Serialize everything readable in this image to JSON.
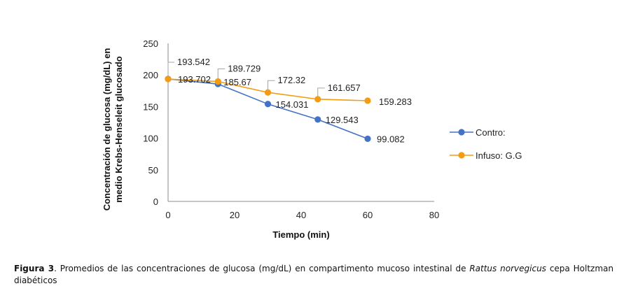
{
  "chart_data": {
    "type": "line",
    "xlabel": "Tiempo (min)",
    "ylabel_lines": [
      "Concentración de glucosa (mg/dL) en",
      "medio Krebs-Henseleit glucosado"
    ],
    "xlim": [
      0,
      80
    ],
    "ylim": [
      0,
      250
    ],
    "x_ticks": [
      0,
      20,
      40,
      60,
      80
    ],
    "y_ticks": [
      0,
      50,
      100,
      150,
      200,
      250
    ],
    "grid": false,
    "legend_position": "right",
    "series": [
      {
        "name": "Contro:",
        "color": "#4472C4",
        "x": [
          0,
          15,
          30,
          45,
          60
        ],
        "values": [
          193.702,
          185.67,
          154.031,
          129.543,
          99.082
        ],
        "labels": [
          "193.702",
          "185.67",
          "154.031",
          "129.543",
          "99.082"
        ]
      },
      {
        "name": "Infuso: G.G",
        "color": "#F39C12",
        "x": [
          0,
          15,
          30,
          45,
          60
        ],
        "values": [
          193.542,
          189.729,
          172.32,
          161.657,
          159.283
        ],
        "labels": [
          "193.542",
          "189.729",
          "172.32",
          "161.657",
          "159.283"
        ]
      }
    ]
  },
  "caption": {
    "label": "Figura 3",
    "text_before": ". Promedios de las concentraciones de glucosa (mg/dL) en compartimento mucoso intestinal de ",
    "species": "Rattus norvegicus",
    "text_after": " cepa Holtzman diabéticos"
  }
}
